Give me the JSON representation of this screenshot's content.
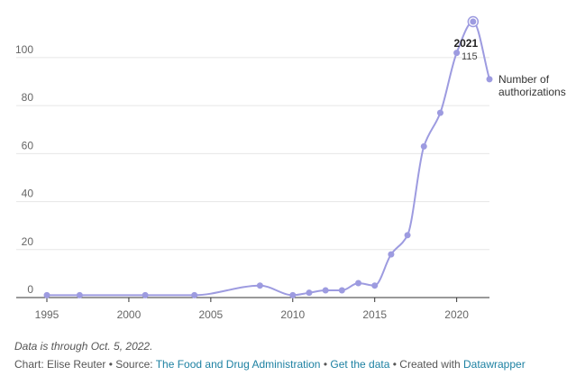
{
  "chart_data": {
    "type": "line",
    "x": [
      1995,
      1997,
      2001,
      2004,
      2008,
      2010,
      2011,
      2012,
      2013,
      2014,
      2015,
      2016,
      2017,
      2018,
      2019,
      2020,
      2021,
      2022
    ],
    "series": [
      {
        "name": "Number of authorizations",
        "values": [
          1,
          1,
          1,
          1,
          5,
          1,
          2,
          3,
          3,
          6,
          5,
          18,
          26,
          63,
          77,
          102,
          115,
          91
        ]
      }
    ],
    "xlim": [
      1995,
      2022
    ],
    "ylim": [
      0,
      115
    ],
    "x_ticks": [
      "1995",
      "2000",
      "2005",
      "2010",
      "2015",
      "2020"
    ],
    "y_ticks": [
      "0",
      "20",
      "40",
      "60",
      "80",
      "100"
    ],
    "grid": "horizontal",
    "color": "#9d9be0",
    "annotation": {
      "year_label": "2021",
      "value_label": "115"
    },
    "series_label": [
      "Number of",
      "authorizations"
    ]
  },
  "notes": {
    "data_note": "Data is through Oct. 5, 2022.",
    "credit_prefix": "Chart: Elise Reuter • Source: ",
    "source_link": "The Food and Drug Administration",
    "separator": " • ",
    "data_link": "Get the data",
    "created_with": " • Created with ",
    "tool_link": "Datawrapper"
  }
}
